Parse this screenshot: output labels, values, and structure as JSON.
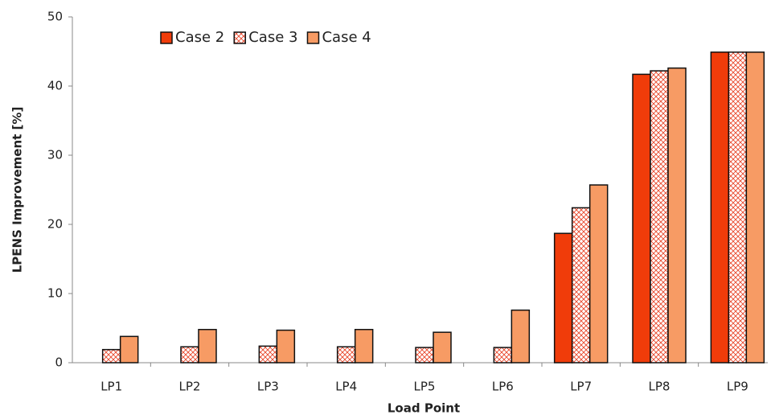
{
  "chart_data": {
    "type": "bar",
    "x_label": "Load Point",
    "y_label": "LPENS Improvement [%]",
    "categories": [
      "LP1",
      "LP2",
      "LP3",
      "LP4",
      "LP5",
      "LP6",
      "LP7",
      "LP8",
      "LP9"
    ],
    "series": [
      {
        "name": "Case 2",
        "color": "#f03c0a",
        "values": [
          0,
          0,
          0,
          0,
          0,
          0,
          18.7,
          41.7,
          44.9
        ]
      },
      {
        "name": "Case 3",
        "color": "#e8462a",
        "hatch": "cross",
        "values": [
          1.9,
          2.3,
          2.4,
          2.3,
          2.2,
          2.2,
          22.4,
          42.2,
          44.9
        ]
      },
      {
        "name": "Case 4",
        "color": "#f79b64",
        "values": [
          3.8,
          4.8,
          4.7,
          4.8,
          4.4,
          7.6,
          25.7,
          42.6,
          44.9
        ]
      }
    ],
    "ylim": [
      0,
      50
    ],
    "yticks": [
      0,
      10,
      20,
      30,
      40,
      50
    ],
    "grid": false,
    "legend": "upper left"
  }
}
